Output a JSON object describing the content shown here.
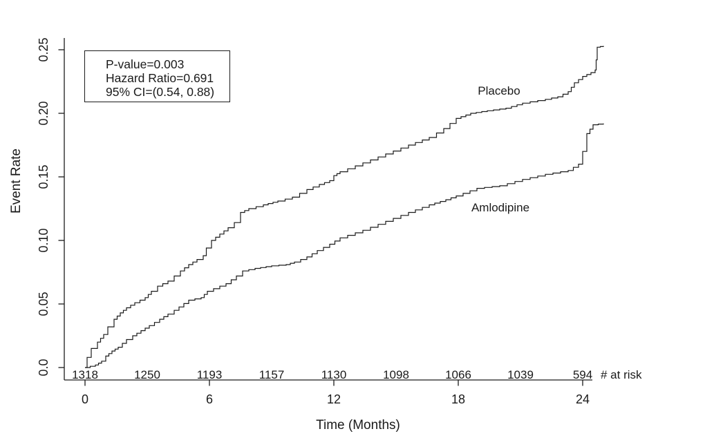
{
  "chart_data": {
    "type": "line",
    "subtype": "kaplan-meier-event-rate-curves",
    "title": "",
    "xlabel": "Time (Months)",
    "ylabel": "Event Rate",
    "xlim": [
      0,
      25.3
    ],
    "ylim": [
      0,
      0.26
    ],
    "x_ticks": [
      0,
      6,
      12,
      18,
      24
    ],
    "x_tick_labels": [
      "0",
      "6",
      "12",
      "18",
      "24"
    ],
    "y_ticks": [
      0,
      0.05,
      0.1,
      0.15,
      0.2,
      0.25
    ],
    "y_tick_labels": [
      "0.0",
      "0.05",
      "0.10",
      "0.15",
      "0.20",
      "0.25"
    ],
    "grid": false,
    "legend_position": "inline-curve-labels",
    "line_color": "#1a1a1a",
    "background_color": "#ffffff",
    "annotation": {
      "lines": [
        "P-value=0.003",
        "Hazard Ratio=0.691",
        "95% CI=(0.54, 0.88)"
      ]
    },
    "series": [
      {
        "name": "Placebo",
        "points": [
          [
            0,
            0
          ],
          [
            0.1,
            0.008
          ],
          [
            0.3,
            0.015
          ],
          [
            0.6,
            0.02
          ],
          [
            0.9,
            0.026
          ],
          [
            1.1,
            0.032
          ],
          [
            1.4,
            0.038
          ],
          [
            1.7,
            0.043
          ],
          [
            2,
            0.047
          ],
          [
            2.4,
            0.051
          ],
          [
            2.9,
            0.055
          ],
          [
            3.2,
            0.06
          ],
          [
            3.5,
            0.064
          ],
          [
            4,
            0.068
          ],
          [
            4.3,
            0.072
          ],
          [
            4.6,
            0.076
          ],
          [
            5,
            0.081
          ],
          [
            5.4,
            0.085
          ],
          [
            5.7,
            0.088
          ],
          [
            5.85,
            0.094
          ],
          [
            6.1,
            0.1
          ],
          [
            6.5,
            0.105
          ],
          [
            6.9,
            0.11
          ],
          [
            7.2,
            0.114
          ],
          [
            7.5,
            0.122
          ],
          [
            7.9,
            0.125
          ],
          [
            8.6,
            0.128
          ],
          [
            9.3,
            0.131
          ],
          [
            10,
            0.134
          ],
          [
            10.7,
            0.14
          ],
          [
            11.3,
            0.144
          ],
          [
            11.8,
            0.147
          ],
          [
            12,
            0.151
          ],
          [
            12.3,
            0.154
          ],
          [
            13.4,
            0.161
          ],
          [
            14.5,
            0.168
          ],
          [
            15.6,
            0.175
          ],
          [
            16.6,
            0.181
          ],
          [
            17.3,
            0.188
          ],
          [
            17.9,
            0.196
          ],
          [
            18.6,
            0.2
          ],
          [
            19.4,
            0.202
          ],
          [
            20.3,
            0.204
          ],
          [
            21.1,
            0.208
          ],
          [
            22.2,
            0.211
          ],
          [
            22.8,
            0.213
          ],
          [
            23.3,
            0.217
          ],
          [
            23.6,
            0.224
          ],
          [
            24,
            0.229
          ],
          [
            24.4,
            0.232
          ],
          [
            24.6,
            0.234
          ],
          [
            24.65,
            0.242
          ],
          [
            24.7,
            0.252
          ],
          [
            25,
            0.253
          ]
        ]
      },
      {
        "name": "Amlodipine",
        "points": [
          [
            0,
            0
          ],
          [
            0.5,
            0.002
          ],
          [
            0.8,
            0.005
          ],
          [
            1,
            0.009
          ],
          [
            1.3,
            0.013
          ],
          [
            1.6,
            0.016
          ],
          [
            2,
            0.022
          ],
          [
            2.3,
            0.025
          ],
          [
            2.7,
            0.029
          ],
          [
            3.1,
            0.033
          ],
          [
            3.6,
            0.038
          ],
          [
            4,
            0.042
          ],
          [
            4.3,
            0.045
          ],
          [
            5,
            0.053
          ],
          [
            5.6,
            0.055
          ],
          [
            5.9,
            0.06
          ],
          [
            6.2,
            0.062
          ],
          [
            6.8,
            0.066
          ],
          [
            7.3,
            0.072
          ],
          [
            7.6,
            0.076
          ],
          [
            8.2,
            0.078
          ],
          [
            9,
            0.08
          ],
          [
            9.7,
            0.081
          ],
          [
            10.1,
            0.083
          ],
          [
            10.7,
            0.087
          ],
          [
            11.2,
            0.092
          ],
          [
            11.8,
            0.097
          ],
          [
            12.3,
            0.102
          ],
          [
            13.4,
            0.108
          ],
          [
            14.5,
            0.115
          ],
          [
            15.6,
            0.122
          ],
          [
            16.6,
            0.128
          ],
          [
            17.4,
            0.132
          ],
          [
            17.9,
            0.135
          ],
          [
            18.9,
            0.141
          ],
          [
            20,
            0.143
          ],
          [
            21.1,
            0.148
          ],
          [
            22.2,
            0.152
          ],
          [
            23.3,
            0.155
          ],
          [
            23.8,
            0.16
          ],
          [
            24,
            0.17
          ],
          [
            24.2,
            0.184
          ],
          [
            24.5,
            0.191
          ],
          [
            25,
            0.192
          ]
        ]
      }
    ],
    "at_risk": {
      "label": "# at risk",
      "times": [
        0,
        3,
        6,
        9,
        12,
        15,
        18,
        21,
        24
      ],
      "counts": [
        1318,
        1250,
        1193,
        1157,
        1130,
        1098,
        1066,
        1039,
        594
      ]
    }
  }
}
